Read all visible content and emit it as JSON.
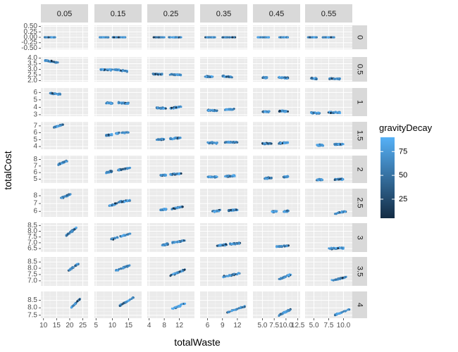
{
  "chart_data": {
    "type": "scatter",
    "xlabel": "totalWaste",
    "ylabel": "totalCost",
    "col_facets": [
      "0.05",
      "0.15",
      "0.25",
      "0.35",
      "0.45",
      "0.55"
    ],
    "row_facets": [
      "0",
      "0.5",
      "1",
      "1.5",
      "2",
      "2.5",
      "3",
      "3.5",
      "4"
    ],
    "legend": {
      "title": "gravityDecay",
      "ticks": [
        "25",
        "50",
        "75"
      ],
      "tick_values": [
        25,
        50,
        75
      ],
      "range": [
        5,
        90
      ],
      "low_color": "#132B43",
      "high_color": "#56B1F7",
      "placement": "right"
    },
    "x_axes": [
      {
        "min": 9,
        "max": 27,
        "ticks": [
          10,
          15,
          20,
          25
        ],
        "labels": [
          "10",
          "15",
          "20",
          "25"
        ]
      },
      {
        "min": 4.5,
        "max": 19,
        "ticks": [
          5,
          10,
          15
        ],
        "labels": [
          "5",
          "10",
          "15"
        ]
      },
      {
        "min": 3.5,
        "max": 16,
        "ticks": [
          4,
          8,
          12
        ],
        "labels": [
          "4",
          "8",
          "12"
        ]
      },
      {
        "min": 4.5,
        "max": 14,
        "ticks": [
          6,
          9,
          12
        ],
        "labels": [
          "6",
          "9",
          "12"
        ]
      },
      {
        "min": 3,
        "max": 13,
        "ticks": [
          5,
          7.5,
          10,
          12.5
        ],
        "labels": [
          "5.0",
          "7.5",
          "10.0",
          "12.5"
        ]
      },
      {
        "min": 3.5,
        "max": 11.5,
        "ticks": [
          5,
          7.5,
          10
        ],
        "labels": [
          "5.0",
          "7.5",
          "10.0"
        ]
      }
    ],
    "y_axes": [
      {
        "min": -0.55,
        "max": 0.55,
        "ticks": [
          -0.5,
          -0.25,
          0,
          0.25,
          0.5
        ],
        "labels": [
          "-0.50",
          "-0.25",
          "0.00",
          "0.25",
          "0.50"
        ]
      },
      {
        "min": 1.9,
        "max": 4.1,
        "ticks": [
          2,
          2.5,
          3,
          3.5,
          4
        ],
        "labels": [
          "2.0",
          "2.5",
          "3.0",
          "3.5",
          "4.0"
        ]
      },
      {
        "min": 2.8,
        "max": 6.6,
        "ticks": [
          3,
          4,
          5,
          6
        ],
        "labels": [
          "3",
          "4",
          "5",
          "6"
        ]
      },
      {
        "min": 3.6,
        "max": 7.6,
        "ticks": [
          4,
          5,
          6,
          7
        ],
        "labels": [
          "4",
          "5",
          "6",
          "7"
        ]
      },
      {
        "min": 4.4,
        "max": 8.6,
        "ticks": [
          5,
          6,
          7,
          8
        ],
        "labels": [
          "5",
          "6",
          "7",
          "8"
        ]
      },
      {
        "min": 5.3,
        "max": 8.9,
        "ticks": [
          6,
          7,
          8
        ],
        "labels": [
          "6",
          "7",
          "8"
        ]
      },
      {
        "min": 6.2,
        "max": 8.7,
        "ticks": [
          6.5,
          7,
          7.5,
          8,
          8.5
        ],
        "labels": [
          "6.5",
          "7.0",
          "7.5",
          "8.0",
          "8.5"
        ]
      },
      {
        "min": 6.6,
        "max": 8.9,
        "ticks": [
          7,
          7.5,
          8,
          8.5
        ],
        "labels": [
          "7.0",
          "7.5",
          "8.0",
          "8.5"
        ]
      },
      {
        "min": 7.3,
        "max": 9.1,
        "ticks": [
          7.5,
          8,
          8.5
        ],
        "labels": [
          "7.5",
          "8.0",
          "8.5"
        ]
      }
    ],
    "clusters": [
      [
        [
          [
            10.5,
            0
          ],
          [
            14.5,
            0
          ]
        ]
      ],
      [
        [
          [
            6,
            0
          ],
          [
            8.8,
            0
          ]
        ],
        [
          [
            10,
            0
          ],
          [
            14,
            0
          ]
        ]
      ],
      [
        [
          [
            5,
            0
          ],
          [
            8,
            0
          ]
        ],
        [
          [
            9,
            0
          ],
          [
            12.5,
            0
          ]
        ]
      ],
      [
        [
          [
            5.5,
            0
          ],
          [
            7.5,
            0
          ]
        ],
        [
          [
            9,
            0
          ],
          [
            11.5,
            0
          ]
        ]
      ],
      [
        [
          [
            4,
            0
          ],
          [
            6.5,
            0
          ]
        ],
        [
          [
            8.5,
            0
          ],
          [
            10.5,
            0
          ]
        ]
      ],
      [
        [
          [
            4,
            0
          ],
          [
            5.5,
            0
          ]
        ],
        [
          [
            6.5,
            0
          ],
          [
            8.5,
            0
          ]
        ]
      ],
      [
        [
          [
            10.5,
            3.8
          ],
          [
            15.5,
            3.6
          ]
        ]
      ],
      [
        [
          [
            6.5,
            2.98
          ],
          [
            10,
            2.95
          ]
        ],
        [
          [
            10.5,
            2.98
          ],
          [
            14.5,
            2.85
          ]
        ]
      ],
      [
        [
          [
            5,
            2.58
          ],
          [
            7.5,
            2.55
          ]
        ],
        [
          [
            9.5,
            2.55
          ],
          [
            12.5,
            2.5
          ]
        ]
      ],
      [
        [
          [
            5.5,
            2.35
          ],
          [
            7,
            2.35
          ]
        ],
        [
          [
            9,
            2.38
          ],
          [
            11,
            2.32
          ]
        ]
      ],
      [
        [
          [
            5,
            2.28
          ],
          [
            6,
            2.25
          ]
        ],
        [
          [
            8.5,
            2.27
          ],
          [
            10.5,
            2.22
          ]
        ]
      ],
      [
        [
          [
            4.5,
            2.2
          ],
          [
            5.5,
            2.15
          ]
        ],
        [
          [
            7.5,
            2.18
          ],
          [
            9.5,
            2.15
          ]
        ]
      ],
      [
        [
          [
            12.5,
            5.9
          ],
          [
            16.5,
            5.75
          ]
        ]
      ],
      [
        [
          [
            8,
            4.6
          ],
          [
            10,
            4.55
          ]
        ],
        [
          [
            11.5,
            4.62
          ],
          [
            15,
            4.5
          ]
        ]
      ],
      [
        [
          [
            6,
            3.9
          ],
          [
            8.5,
            3.85
          ]
        ],
        [
          [
            9.5,
            3.85
          ],
          [
            12.5,
            4.1
          ]
        ]
      ],
      [
        [
          [
            6,
            3.6
          ],
          [
            8,
            3.55
          ]
        ],
        [
          [
            9.5,
            3.7
          ],
          [
            11.5,
            3.75
          ]
        ]
      ],
      [
        [
          [
            5,
            3.4
          ],
          [
            6.5,
            3.38
          ]
        ],
        [
          [
            8.5,
            3.5
          ],
          [
            10.5,
            3.45
          ]
        ]
      ],
      [
        [
          [
            4.5,
            3.25
          ],
          [
            6,
            3.2
          ]
        ],
        [
          [
            7.5,
            3.3
          ],
          [
            9.5,
            3.28
          ]
        ]
      ],
      [
        [
          [
            14,
            6.8
          ],
          [
            17.5,
            7.2
          ]
        ]
      ],
      [
        [
          [
            8,
            5.6
          ],
          [
            10,
            5.75
          ]
        ],
        [
          [
            11,
            5.9
          ],
          [
            15,
            6.1
          ]
        ]
      ],
      [
        [
          [
            6,
            5
          ],
          [
            8,
            5.05
          ]
        ],
        [
          [
            9.5,
            5.1
          ],
          [
            12.5,
            5.3
          ]
        ]
      ],
      [
        [
          [
            6,
            4.55
          ],
          [
            8,
            4.5
          ]
        ],
        [
          [
            9.5,
            4.6
          ],
          [
            12,
            4.65
          ]
        ]
      ],
      [
        [
          [
            5,
            4.4
          ],
          [
            7,
            4.45
          ]
        ],
        [
          [
            8.5,
            4.5
          ],
          [
            10.5,
            4.55
          ]
        ]
      ],
      [
        [
          [
            5.5,
            4.2
          ],
          [
            6.5,
            4.2
          ]
        ],
        [
          [
            8.5,
            4.3
          ],
          [
            10,
            4.35
          ]
        ]
      ],
      [
        [
          [
            15.5,
            7.2
          ],
          [
            19,
            7.8
          ]
        ]
      ],
      [
        [
          [
            8,
            6
          ],
          [
            10,
            6.2
          ]
        ],
        [
          [
            11.5,
            6.4
          ],
          [
            15.5,
            6.7
          ]
        ]
      ],
      [
        [
          [
            7,
            5.6
          ],
          [
            8.5,
            5.6
          ]
        ],
        [
          [
            9.5,
            5.7
          ],
          [
            12.5,
            5.85
          ]
        ]
      ],
      [
        [
          [
            6,
            5.35
          ],
          [
            8,
            5.3
          ]
        ],
        [
          [
            9.5,
            5.4
          ],
          [
            11.5,
            5.5
          ]
        ]
      ],
      [
        [
          [
            5.5,
            5.1
          ],
          [
            7,
            5.2
          ]
        ],
        [
          [
            9.5,
            5.3
          ],
          [
            10.5,
            5.4
          ]
        ]
      ],
      [
        [
          [
            5.5,
            4.9
          ],
          [
            6.5,
            4.9
          ]
        ],
        [
          [
            8.5,
            4.95
          ],
          [
            10,
            5
          ]
        ]
      ],
      [
        [
          [
            16.5,
            7.7
          ],
          [
            20.5,
            8.2
          ]
        ]
      ],
      [
        [
          [
            9,
            6.7
          ],
          [
            11.5,
            7
          ]
        ],
        [
          [
            12,
            7.2
          ],
          [
            15.5,
            7.4
          ]
        ]
      ],
      [
        [
          [
            7,
            6.2
          ],
          [
            8.5,
            6.3
          ]
        ],
        [
          [
            10,
            6.3
          ],
          [
            13,
            6.6
          ]
        ]
      ],
      [
        [
          [
            7,
            6
          ],
          [
            8.5,
            6.1
          ]
        ],
        [
          [
            10,
            6.1
          ],
          [
            12,
            6.2
          ]
        ]
      ],
      [
        [
          [
            7,
            5.95
          ],
          [
            8,
            6
          ]
        ],
        [
          [
            9.5,
            5.95
          ],
          [
            10.5,
            6.05
          ]
        ]
      ],
      [
        [
          [
            8.5,
            5.7
          ],
          [
            10.5,
            6
          ]
        ]
      ],
      [
        [
          [
            18.5,
            7.6
          ],
          [
            22.5,
            8.3
          ]
        ]
      ],
      [
        [
          [
            9.5,
            7.3
          ],
          [
            15.5,
            7.8
          ]
        ]
      ],
      [
        [
          [
            7.5,
            6.8
          ],
          [
            9,
            6.9
          ]
        ],
        [
          [
            10,
            7
          ],
          [
            13.5,
            7.2
          ]
        ]
      ],
      [
        [
          [
            8,
            6.75
          ],
          [
            10,
            6.85
          ]
        ],
        [
          [
            10.5,
            6.9
          ],
          [
            12.5,
            6.95
          ]
        ]
      ],
      [
        [
          [
            8,
            6.65
          ],
          [
            10.5,
            6.75
          ]
        ]
      ],
      [
        [
          [
            7.5,
            6.5
          ],
          [
            10,
            6.55
          ]
        ]
      ],
      [
        [
          [
            19.5,
            7.8
          ],
          [
            23.5,
            8.4
          ]
        ]
      ],
      [
        [
          [
            11,
            7.8
          ],
          [
            16,
            8.3
          ]
        ]
      ],
      [
        [
          [
            9.5,
            7.4
          ],
          [
            13.5,
            7.9
          ]
        ]
      ],
      [
        [
          [
            9,
            7.3
          ],
          [
            12.5,
            7.6
          ]
        ]
      ],
      [
        [
          [
            8.5,
            7.1
          ],
          [
            11,
            7.5
          ]
        ]
      ],
      [
        [
          [
            8,
            7.0
          ],
          [
            10.5,
            7.3
          ]
        ]
      ],
      [
        [
          [
            20.5,
            8.0
          ],
          [
            24,
            8.6
          ]
        ]
      ],
      [
        [
          [
            12,
            8.1
          ],
          [
            16.5,
            8.7
          ]
        ]
      ],
      [
        [
          [
            10,
            7.9
          ],
          [
            13.5,
            8.3
          ]
        ]
      ],
      [
        [
          [
            10,
            7.7
          ],
          [
            13.5,
            8.1
          ]
        ]
      ],
      [
        [
          [
            8.5,
            7.5
          ],
          [
            11,
            7.9
          ]
        ]
      ],
      [
        [
          [
            8.5,
            7.5
          ],
          [
            11,
            7.9
          ]
        ]
      ]
    ]
  }
}
